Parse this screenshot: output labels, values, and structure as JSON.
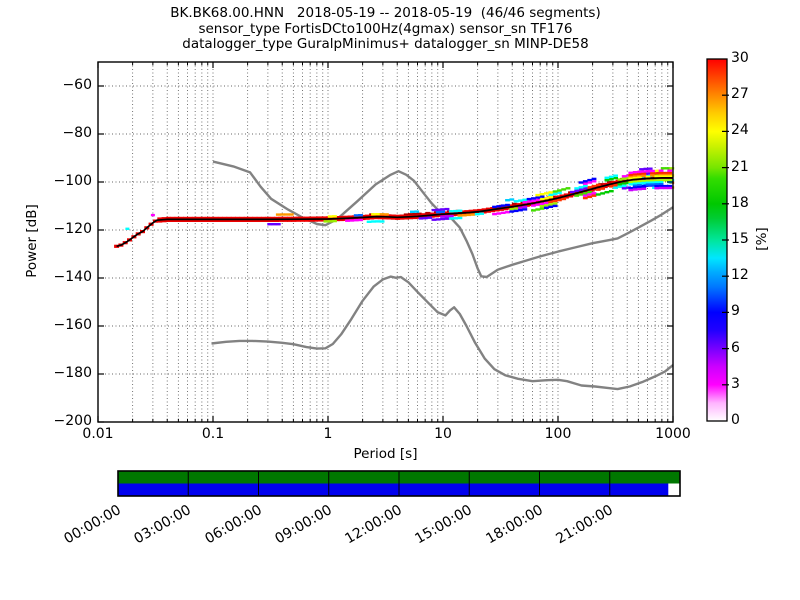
{
  "title": {
    "line1": "BK.BK68.00.HNN   2018-05-19 -- 2018-05-19  (46/46 segments)",
    "line2": "sensor_type FortisDCto100Hz(4gmax) sensor_sn TF176",
    "line3": "datalogger_type GuralpMinimus+ datalogger_sn MINP-DE58"
  },
  "axes": {
    "xlabel": "Period [s]",
    "ylabel": "Power [dB]",
    "x_tick_labels": [
      "0.01",
      "0.1",
      "1",
      "10",
      "100",
      "1000"
    ],
    "x_tick_values": [
      0.01,
      0.1,
      1,
      10,
      100,
      1000
    ],
    "y_tick_labels": [
      "−60",
      "−80",
      "−100",
      "−120",
      "−140",
      "−160",
      "−180",
      "−200"
    ],
    "y_tick_values": [
      -60,
      -80,
      -100,
      -120,
      -140,
      -160,
      -180,
      -200
    ],
    "xlim": [
      0.01,
      1000
    ],
    "ylim": [
      -200,
      -50
    ],
    "grid": "dotted-both"
  },
  "colorbar": {
    "label": "[%]",
    "tick_labels": [
      "0",
      "3",
      "6",
      "9",
      "12",
      "15",
      "18",
      "21",
      "24",
      "27",
      "30"
    ],
    "tick_values": [
      0,
      3,
      6,
      9,
      12,
      15,
      18,
      21,
      24,
      27,
      30
    ],
    "min": 0,
    "max": 30,
    "gradient_stops": [
      [
        0.0,
        "#ffffff"
      ],
      [
        0.05,
        "#ffb3ff"
      ],
      [
        0.1,
        "#ff00ff"
      ],
      [
        0.15,
        "#cc00ff"
      ],
      [
        0.2,
        "#7700ff"
      ],
      [
        0.25,
        "#2200ff"
      ],
      [
        0.3,
        "#0000ff"
      ],
      [
        0.37,
        "#0077ff"
      ],
      [
        0.41,
        "#00aaff"
      ],
      [
        0.45,
        "#00e6ff"
      ],
      [
        0.5,
        "#00e69a"
      ],
      [
        0.56,
        "#00cc33"
      ],
      [
        0.6,
        "#00c800"
      ],
      [
        0.67,
        "#33dd00"
      ],
      [
        0.7,
        "#77e600"
      ],
      [
        0.76,
        "#ccf200"
      ],
      [
        0.8,
        "#ffff00"
      ],
      [
        0.85,
        "#ffcc00"
      ],
      [
        0.9,
        "#ff8800"
      ],
      [
        0.95,
        "#ff4400"
      ],
      [
        1.0,
        "#ff0000"
      ]
    ]
  },
  "coverage_bar": {
    "green_color": "#007700",
    "blue_color": "#0000ee",
    "time_tick_labels": [
      "00:00:00",
      "03:00:00",
      "06:00:00",
      "09:00:00",
      "12:00:00",
      "15:00:00",
      "18:00:00",
      "21:00:00"
    ],
    "total_hours": 24,
    "data_start_hours": 0,
    "data_end_hours": 23.5
  },
  "chart_data": {
    "type": "heatmap",
    "description": "ObsPy PPSD probabilistic power spectral density, acceleration PSD vs period, probability colormap pqlx 0-30%",
    "xlabel": "Period [s]",
    "ylabel": "Power [dB]",
    "xlim": [
      0.01,
      1000
    ],
    "ylim": [
      -200,
      -50
    ],
    "percent_range": [
      0,
      30
    ],
    "noise_model_color": "#828282",
    "mode_line": [
      [
        0.0145,
        -126.8
      ],
      [
        0.016,
        -126.2
      ],
      [
        0.018,
        -124.8
      ],
      [
        0.02,
        -123.2
      ],
      [
        0.022,
        -121.8
      ],
      [
        0.0245,
        -120.6
      ],
      [
        0.027,
        -118.8
      ],
      [
        0.03,
        -117.0
      ],
      [
        0.0325,
        -115.9
      ],
      [
        0.04,
        -115.6
      ],
      [
        0.1,
        -115.6
      ],
      [
        0.3,
        -115.6
      ],
      [
        0.6,
        -115.5
      ],
      [
        1,
        -115.4
      ],
      [
        1.5,
        -115.1
      ],
      [
        2,
        -114.8
      ],
      [
        2.6,
        -114.4
      ],
      [
        3.2,
        -114.5
      ],
      [
        4,
        -114.7
      ],
      [
        5,
        -114.5
      ],
      [
        6,
        -114.3
      ],
      [
        8,
        -113.8
      ],
      [
        10,
        -113.4
      ],
      [
        13,
        -113.1
      ],
      [
        17,
        -112.7
      ],
      [
        21,
        -112.3
      ],
      [
        27,
        -111.5
      ],
      [
        35,
        -110.7
      ],
      [
        45,
        -109.9
      ],
      [
        60,
        -108.9
      ],
      [
        80,
        -107.7
      ],
      [
        100,
        -106.7
      ],
      [
        130,
        -105.3
      ],
      [
        170,
        -103.8
      ],
      [
        220,
        -102.3
      ],
      [
        280,
        -101.0
      ],
      [
        350,
        -99.9
      ],
      [
        450,
        -99.0
      ],
      [
        600,
        -98.5
      ],
      [
        800,
        -98.3
      ],
      [
        1000,
        -98.3
      ]
    ],
    "nhnm": [
      [
        0.1,
        -91.5
      ],
      [
        0.15,
        -93.5
      ],
      [
        0.21,
        -96
      ],
      [
        0.26,
        -102
      ],
      [
        0.32,
        -107
      ],
      [
        0.45,
        -111.5
      ],
      [
        0.6,
        -114.8
      ],
      [
        0.8,
        -117.5
      ],
      [
        0.95,
        -118
      ],
      [
        1.2,
        -115.5
      ],
      [
        1.8,
        -108
      ],
      [
        2.6,
        -101
      ],
      [
        3.5,
        -97
      ],
      [
        4.1,
        -95.5
      ],
      [
        4.8,
        -97
      ],
      [
        5.6,
        -99.5
      ],
      [
        7,
        -105.5
      ],
      [
        8,
        -109
      ],
      [
        9,
        -111.5
      ],
      [
        10,
        -113
      ],
      [
        12,
        -115.5
      ],
      [
        14,
        -119
      ],
      [
        16,
        -124.5
      ],
      [
        18,
        -130
      ],
      [
        20,
        -136
      ],
      [
        21.5,
        -139.3
      ],
      [
        24,
        -139.6
      ],
      [
        30,
        -136.5
      ],
      [
        40,
        -134.5
      ],
      [
        55,
        -132.5
      ],
      [
        70,
        -131
      ],
      [
        100,
        -129
      ],
      [
        140,
        -127.3
      ],
      [
        200,
        -125.5
      ],
      [
        280,
        -124.2
      ],
      [
        330,
        -123.5
      ],
      [
        400,
        -121.5
      ],
      [
        500,
        -119
      ],
      [
        650,
        -116
      ],
      [
        800,
        -113.5
      ],
      [
        1000,
        -110.5
      ]
    ],
    "nlnm": [
      [
        0.097,
        -167.3
      ],
      [
        0.13,
        -166.6
      ],
      [
        0.17,
        -166.2
      ],
      [
        0.22,
        -166.2
      ],
      [
        0.3,
        -166.5
      ],
      [
        0.4,
        -167
      ],
      [
        0.5,
        -167.6
      ],
      [
        0.65,
        -168.8
      ],
      [
        0.8,
        -169.4
      ],
      [
        0.95,
        -169.3
      ],
      [
        1.1,
        -167.5
      ],
      [
        1.3,
        -163.5
      ],
      [
        1.6,
        -157
      ],
      [
        2,
        -149.5
      ],
      [
        2.5,
        -143.5
      ],
      [
        3,
        -140.6
      ],
      [
        3.5,
        -139.4
      ],
      [
        3.9,
        -139.9
      ],
      [
        4.3,
        -139.6
      ],
      [
        5,
        -141.8
      ],
      [
        6,
        -145.8
      ],
      [
        7.5,
        -150.5
      ],
      [
        9,
        -154.3
      ],
      [
        10.5,
        -155.6
      ],
      [
        11.5,
        -153.5
      ],
      [
        12.5,
        -152.2
      ],
      [
        14,
        -155
      ],
      [
        16,
        -160
      ],
      [
        19,
        -167
      ],
      [
        23,
        -173.5
      ],
      [
        28,
        -178
      ],
      [
        35,
        -180.6
      ],
      [
        45,
        -182
      ],
      [
        60,
        -183
      ],
      [
        80,
        -182.6
      ],
      [
        100,
        -182.4
      ],
      [
        120,
        -183
      ],
      [
        160,
        -184.8
      ],
      [
        210,
        -185.2
      ],
      [
        270,
        -185.8
      ],
      [
        330,
        -186.3
      ],
      [
        420,
        -185.2
      ],
      [
        550,
        -183.2
      ],
      [
        700,
        -181
      ],
      [
        850,
        -179
      ],
      [
        1000,
        -176.3
      ]
    ],
    "extra_cells": [
      {
        "period": 0.018,
        "db": -119.5,
        "color": "#00ffff"
      },
      {
        "period": 0.03,
        "db": -113.8,
        "color": "#ff00ff"
      }
    ],
    "right_stripes": [
      {
        "off": 3.0,
        "color": "#ff00ff"
      },
      {
        "off": 2.0,
        "color": "#ff2a00"
      },
      {
        "off": 1.2,
        "color": "#ff8800"
      },
      {
        "off": 0.6,
        "color": "#ffff00"
      },
      {
        "off": -1.0,
        "color": "#aaff00"
      },
      {
        "off": -1.8,
        "color": "#00ffff"
      },
      {
        "off": -2.6,
        "color": "#0066ff"
      },
      {
        "off": -3.4,
        "color": "#0000ff"
      },
      {
        "off": -4.2,
        "color": "#cc00ff"
      }
    ],
    "scatter_palette": [
      "#ff00ff",
      "#ff00ff",
      "#b300ff",
      "#6600ff",
      "#0000ff",
      "#0000ff",
      "#0066ff",
      "#00ccff",
      "#00ffff",
      "#00ffff",
      "#00cc00",
      "#44dd00",
      "#99ee00",
      "#ffff00",
      "#ffff00",
      "#ff9900",
      "#ff3300"
    ]
  }
}
